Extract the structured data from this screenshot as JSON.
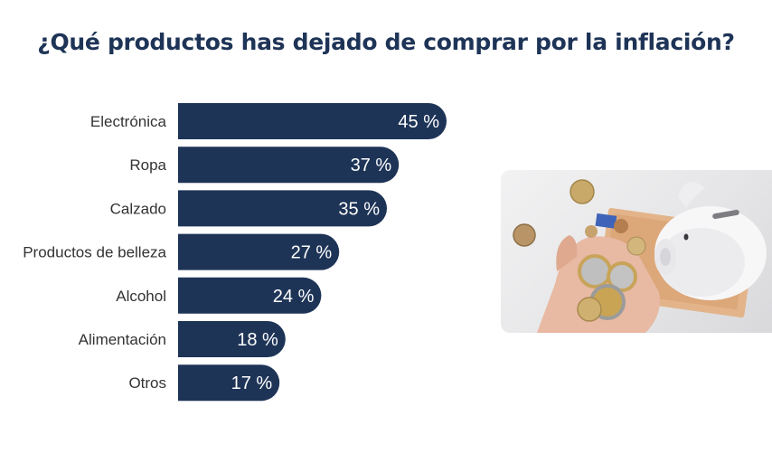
{
  "colors": {
    "bar": "#1e3457",
    "title": "#1e3457",
    "label": "#333333",
    "value": "#ffffff"
  },
  "chart_data": {
    "type": "bar",
    "orientation": "horizontal",
    "title": "¿Qué productos has dejado de comprar por la inflación?",
    "categories": [
      "Electrónica",
      "Ropa",
      "Calzado",
      "Productos de belleza",
      "Alcohol",
      "Alimentación",
      "Otros"
    ],
    "values": [
      45,
      37,
      35,
      27,
      24,
      18,
      17
    ],
    "value_labels": [
      "45 %",
      "37 %",
      "35 %",
      "27 %",
      "24 %",
      "18 %",
      "17 %"
    ],
    "unit": "%",
    "xlim": [
      0,
      45
    ],
    "grid": false,
    "legend": "none"
  },
  "image": {
    "icon": "piggy-bank-coins-photo"
  }
}
